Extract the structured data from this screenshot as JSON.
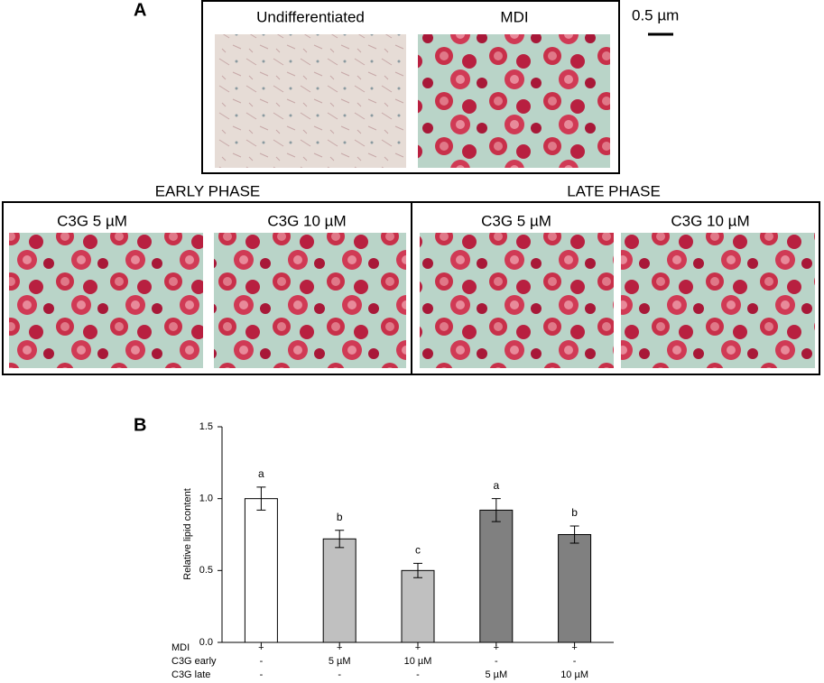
{
  "panel_a": {
    "label": "A",
    "scale_bar": "0.5 µm",
    "top": {
      "images": [
        {
          "label": "Undifferentiated"
        },
        {
          "label": "MDI"
        }
      ]
    },
    "groups": [
      {
        "title": "EARLY PHASE",
        "images": [
          {
            "label": "C3G 5 µM"
          },
          {
            "label": "C3G 10 µM"
          }
        ]
      },
      {
        "title": "LATE PHASE",
        "images": [
          {
            "label": "C3G 5 µM"
          },
          {
            "label": "C3G 10 µM"
          }
        ]
      }
    ]
  },
  "chart_data": {
    "type": "bar",
    "panel_label": "B",
    "y_label": "Relative lipid content",
    "values": [
      1.0,
      0.72,
      0.5,
      0.92,
      0.75
    ],
    "errors": [
      0.08,
      0.06,
      0.05,
      0.08,
      0.06
    ],
    "colors": [
      "#ffffff",
      "#c0c0c0",
      "#c0c0c0",
      "#808080",
      "#808080"
    ],
    "annotations": [
      "a",
      "b",
      "c",
      "a",
      "b"
    ],
    "ylim": [
      0,
      1.5
    ],
    "yticks": [
      {
        "value": 0,
        "label": "0.0"
      },
      0.5,
      {
        "value": 1,
        "label": "1.0"
      },
      1.5
    ],
    "table_rows": [
      {
        "label": "MDI",
        "cells": [
          "+",
          "+",
          "+",
          "+",
          "+"
        ]
      },
      {
        "label": "C3G early",
        "cells": [
          "-",
          "5 µM",
          "10 µM",
          "-",
          "-"
        ]
      },
      {
        "label": "C3G late",
        "cells": [
          "-",
          "-",
          "-",
          "5 µM",
          "10 µM"
        ]
      }
    ]
  }
}
